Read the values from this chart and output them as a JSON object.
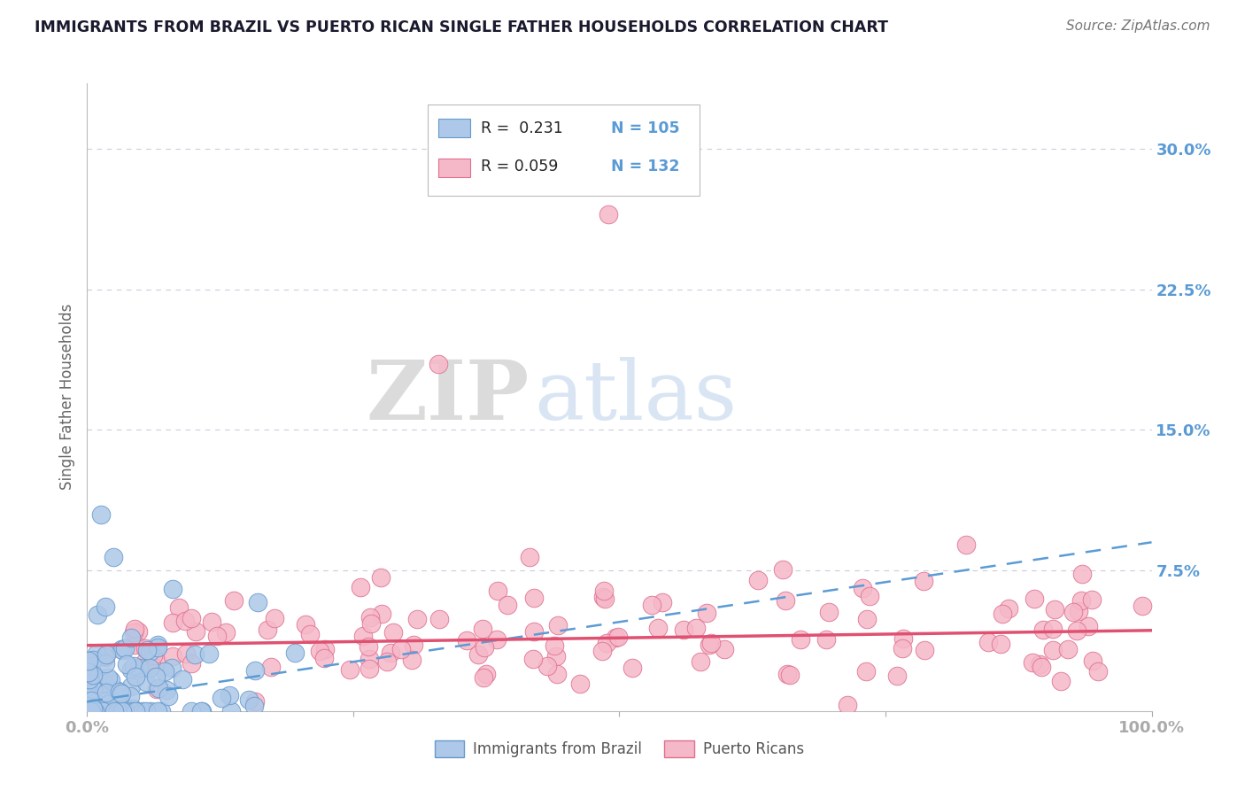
{
  "title": "IMMIGRANTS FROM BRAZIL VS PUERTO RICAN SINGLE FATHER HOUSEHOLDS CORRELATION CHART",
  "source": "Source: ZipAtlas.com",
  "ylabel": "Single Father Households",
  "xlim": [
    0.0,
    1.0
  ],
  "ylim": [
    0.0,
    0.335
  ],
  "ytick_labels": [
    "7.5%",
    "15.0%",
    "22.5%",
    "30.0%"
  ],
  "ytick_positions": [
    0.075,
    0.15,
    0.225,
    0.3
  ],
  "series1_color": "#adc8e8",
  "series1_edge": "#6699cc",
  "series2_color": "#f5b8c8",
  "series2_edge": "#e07090",
  "line1_color": "#5b9bd5",
  "line2_color": "#e05070",
  "legend_r1": "R =  0.231",
  "legend_n1": "N = 105",
  "legend_r2": "R = 0.059",
  "legend_n2": "N = 132",
  "watermark_zip": "ZIP",
  "watermark_atlas": "atlas",
  "background_color": "#ffffff",
  "grid_color": "#ccccdd",
  "title_color": "#1a1a2e",
  "axis_label_color": "#5b9bd5",
  "r1": 0.231,
  "r2": 0.059,
  "n1": 105,
  "n2": 132,
  "seed1": 42,
  "seed2": 99,
  "line1_intercept": 0.005,
  "line1_slope": 0.085,
  "line2_intercept": 0.035,
  "line2_slope": 0.008
}
